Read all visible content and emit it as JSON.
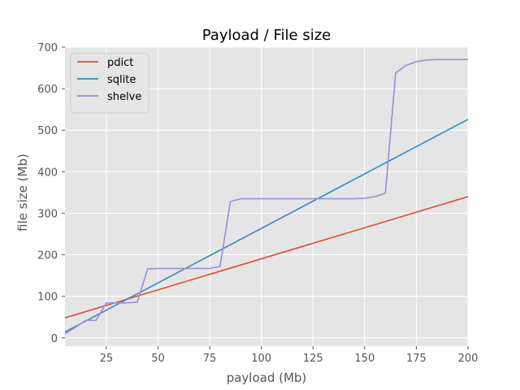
{
  "chart_data": {
    "type": "line",
    "title": "Payload / File size",
    "xlabel": "payload (Mb)",
    "ylabel": "file size (Mb)",
    "xlim": [
      5,
      200
    ],
    "ylim": [
      -20,
      700
    ],
    "xticks": [
      25,
      50,
      75,
      100,
      125,
      150,
      175,
      200
    ],
    "yticks": [
      0,
      100,
      200,
      300,
      400,
      500,
      600,
      700
    ],
    "grid": true,
    "legend_position": "top-left",
    "series": [
      {
        "name": "pdict",
        "color": "#e24a33",
        "x": [
          5,
          200
        ],
        "y": [
          48,
          340
        ]
      },
      {
        "name": "sqlite",
        "color": "#348abd",
        "x": [
          5,
          200
        ],
        "y": [
          14,
          526
        ]
      },
      {
        "name": "shelve",
        "color": "#988ed5",
        "x": [
          5,
          10,
          15,
          20,
          25,
          30,
          35,
          40,
          45,
          50,
          55,
          60,
          65,
          70,
          75,
          80,
          85,
          90,
          95,
          100,
          105,
          110,
          115,
          120,
          125,
          130,
          135,
          140,
          145,
          150,
          155,
          160,
          165,
          170,
          175,
          180,
          185,
          190,
          195,
          200
        ],
        "y": [
          10,
          25,
          42,
          42,
          84,
          84,
          84,
          86,
          166,
          167,
          167,
          167,
          167,
          167,
          167,
          172,
          328,
          335,
          335,
          335,
          335,
          335,
          335,
          335,
          335,
          335,
          335,
          335,
          335,
          336,
          340,
          348,
          638,
          656,
          665,
          669,
          670,
          670,
          670,
          670
        ]
      }
    ]
  }
}
